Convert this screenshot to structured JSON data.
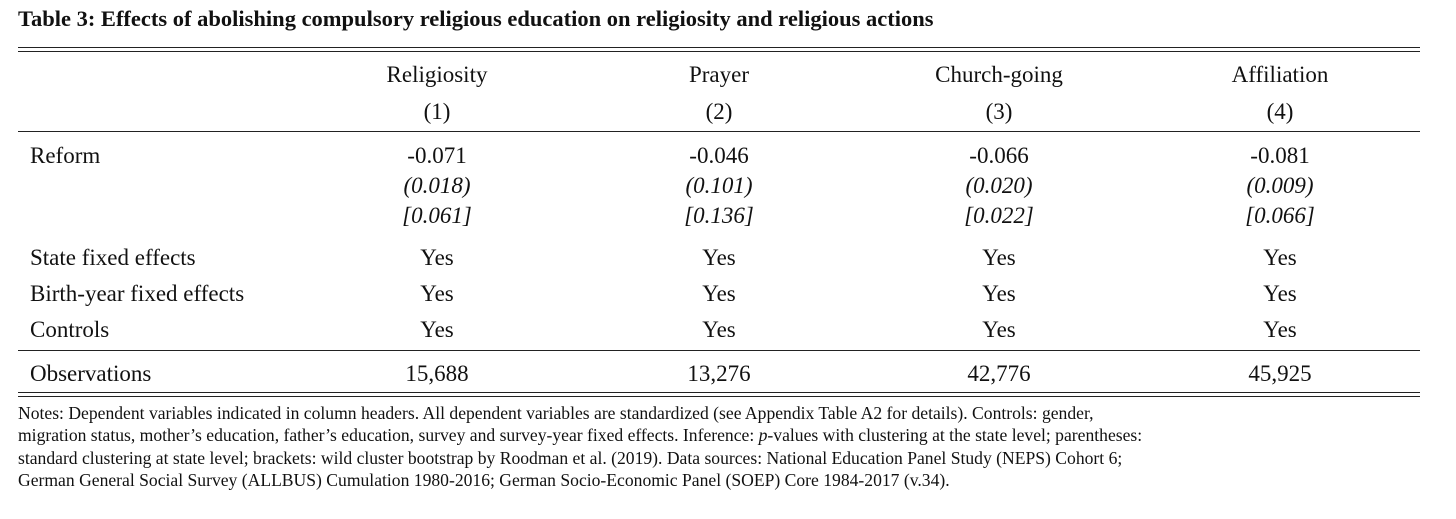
{
  "title": "Table 3: Effects of abolishing compulsory religious education on religiosity and religious actions",
  "columns": [
    {
      "label": "Religiosity",
      "number": "(1)"
    },
    {
      "label": "Prayer",
      "number": "(2)"
    },
    {
      "label": "Church-going",
      "number": "(3)"
    },
    {
      "label": "Affiliation",
      "number": "(4)"
    }
  ],
  "reform": {
    "label": "Reform",
    "coef": [
      "-0.071",
      "-0.046",
      "-0.066",
      "-0.081"
    ],
    "se_paren": [
      "(0.018)",
      "(0.101)",
      "(0.020)",
      "(0.009)"
    ],
    "se_bracket": [
      "[0.061]",
      "[0.136]",
      "[0.022]",
      "[0.066]"
    ]
  },
  "indicator_rows": [
    {
      "label": "State fixed effects",
      "values": [
        "Yes",
        "Yes",
        "Yes",
        "Yes"
      ]
    },
    {
      "label": "Birth-year fixed effects",
      "values": [
        "Yes",
        "Yes",
        "Yes",
        "Yes"
      ]
    },
    {
      "label": "Controls",
      "values": [
        "Yes",
        "Yes",
        "Yes",
        "Yes"
      ]
    }
  ],
  "observations": {
    "label": "Observations",
    "values": [
      "15,688",
      "13,276",
      "42,776",
      "45,925"
    ]
  },
  "notes": {
    "line1": "Notes: Dependent variables indicated in column headers. All dependent variables are standardized (see Appendix Table A2 for details). Controls: gender,",
    "line2_before": "migration status, mother’s education, father’s education, survey and survey-year fixed effects. Inference: ",
    "line2_p": "p",
    "line2_after": "-values with clustering at the state level; parentheses:",
    "line3": "standard clustering at state level; brackets: wild cluster bootstrap by Roodman et al. (2019). Data sources: National Education Panel Study (NEPS) Cohort 6;",
    "line4": "German General Social Survey (ALLBUS) Cumulation 1980-2016; German Socio-Economic Panel (SOEP) Core 1984-2017 (v.34)."
  }
}
